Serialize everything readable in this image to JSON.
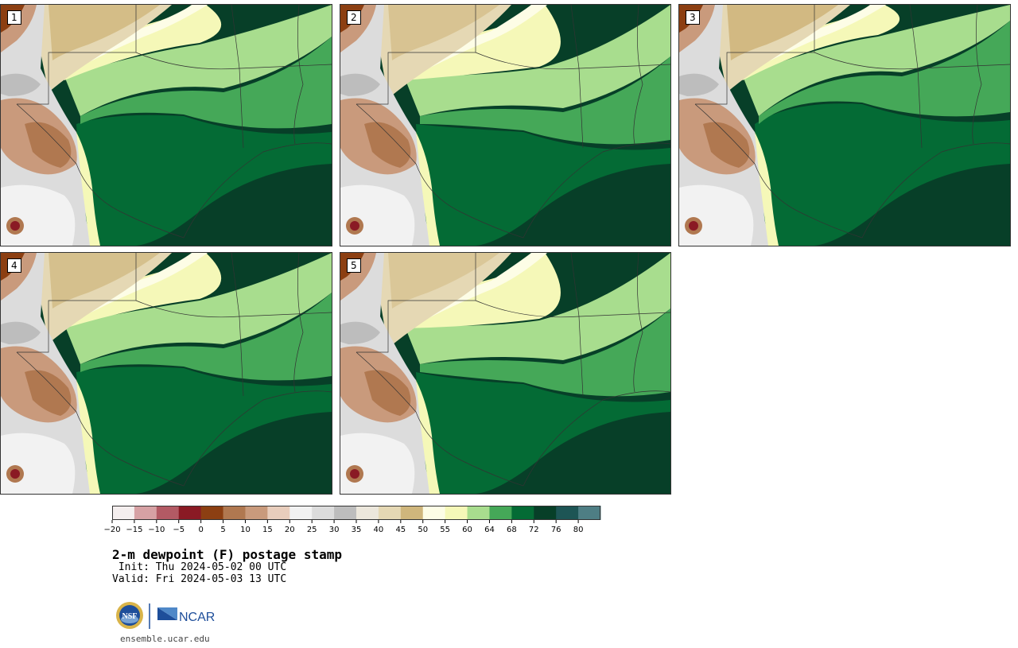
{
  "panels": [
    {
      "label": "1"
    },
    {
      "label": "2"
    },
    {
      "label": "3"
    },
    {
      "label": "4"
    },
    {
      "label": "5"
    }
  ],
  "colorbar": {
    "ticks": [
      "−20",
      "−15",
      "−10",
      "−5",
      "0",
      "5",
      "10",
      "15",
      "20",
      "25",
      "30",
      "35",
      "40",
      "45",
      "50",
      "55",
      "60",
      "64",
      "68",
      "72",
      "76",
      "80"
    ],
    "colors": [
      "#f4eeee",
      "#d6a1a4",
      "#b35a64",
      "#8a1a24",
      "#8c3f12",
      "#b07850",
      "#c99a7c",
      "#e8cdbc",
      "#f2f2f2",
      "#dcdcdc",
      "#bdbdbd",
      "#ece7dc",
      "#e5d8b4",
      "#cfb67c",
      "#fdfde6",
      "#f5f8b8",
      "#a8dd8e",
      "#45a858",
      "#046b35",
      "#073f28",
      "#1d5555",
      "#4e7e84"
    ]
  },
  "title": "2-m dewpoint (F) postage stamp",
  "init": " Init: Thu 2024-05-02 00 UTC",
  "valid": "Valid: Fri 2024-05-03 13 UTC",
  "logos": {
    "nsf": "NSF",
    "ncar": "NCAR"
  },
  "url": "ensemble.ucar.edu"
}
